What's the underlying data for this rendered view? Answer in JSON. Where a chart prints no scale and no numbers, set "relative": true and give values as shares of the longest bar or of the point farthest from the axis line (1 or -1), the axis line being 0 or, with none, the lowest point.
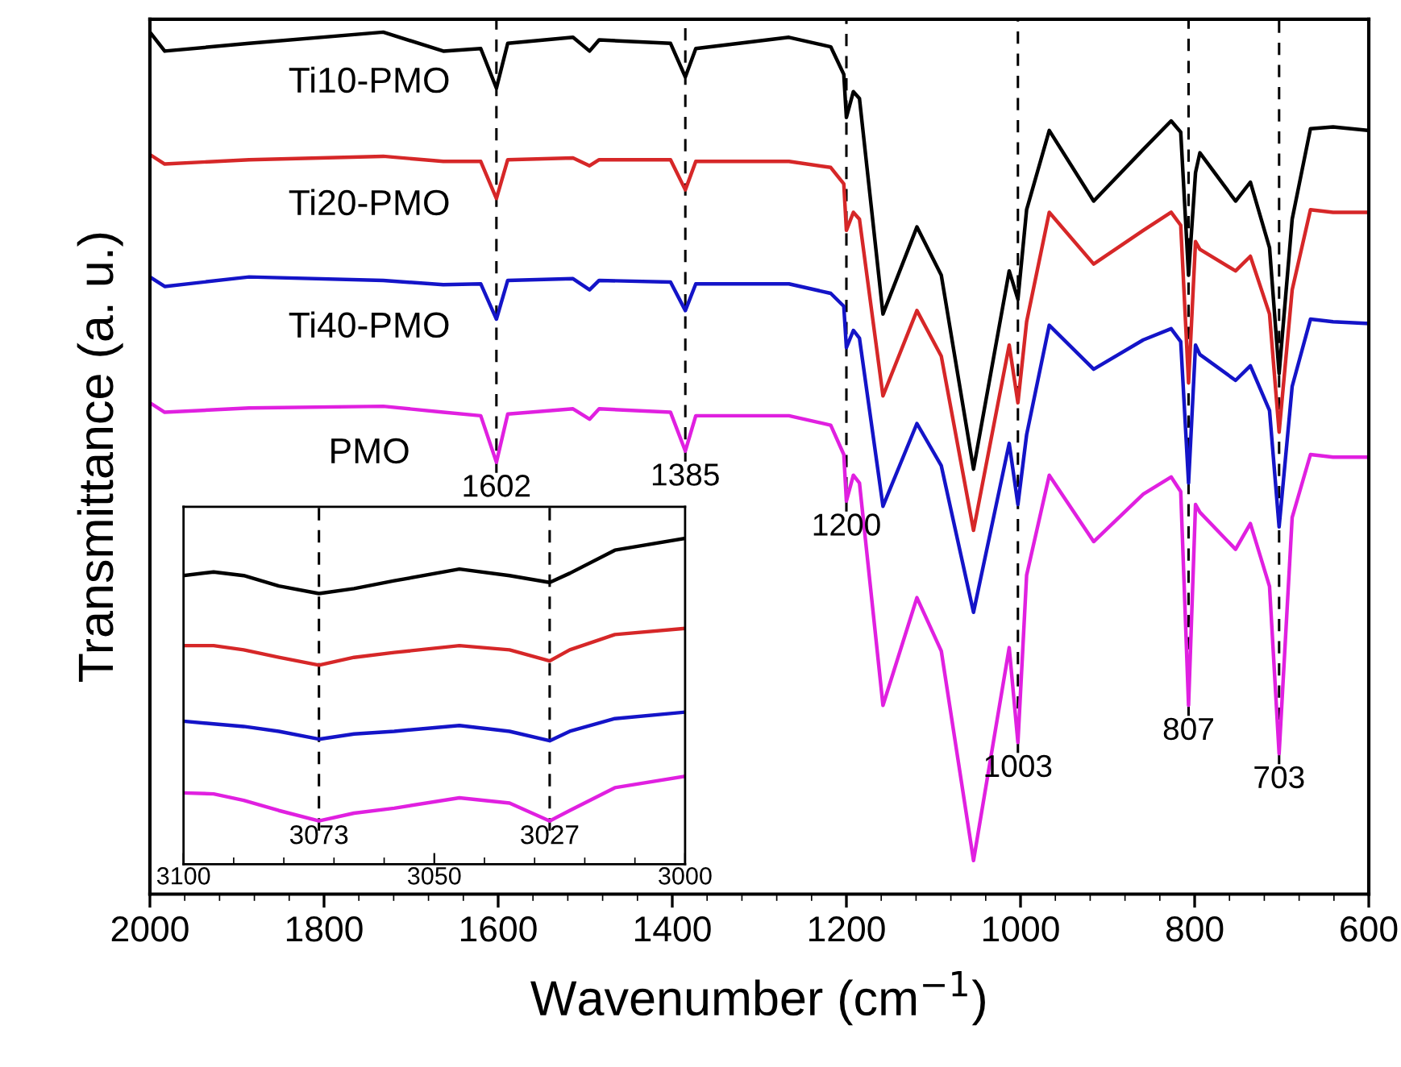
{
  "chart_data": [
    {
      "type": "line",
      "relative": true,
      "xlabel": "Wavenumber (cm$^{−1}$)",
      "ylabel": "Transmittance (a. u.)",
      "xlim": [
        2000,
        600
      ],
      "xticks": [
        2000,
        1800,
        1600,
        1400,
        1200,
        1000,
        800,
        600
      ],
      "tick_labels": "x",
      "grid": false,
      "legend": false,
      "marker": "none",
      "line_style": "solid",
      "x": [
        2000,
        1983,
        1886,
        1732,
        1663,
        1620,
        1602,
        1589,
        1514,
        1495,
        1484,
        1402,
        1385,
        1373,
        1266,
        1218,
        1203,
        1200,
        1192,
        1185,
        1158,
        1119,
        1091,
        1054,
        1013,
        1003,
        993,
        967,
        916,
        859,
        827,
        816,
        807,
        799,
        794,
        753,
        736,
        714,
        703,
        688,
        667,
        641,
        600
      ],
      "series": [
        {
          "name": "Ti10-PMO",
          "color": "#000000",
          "values": [
            1.0,
            0.978,
            0.987,
            1.0,
            0.978,
            0.981,
            0.935,
            0.987,
            0.994,
            0.978,
            0.991,
            0.987,
            0.948,
            0.981,
            0.994,
            0.983,
            0.951,
            0.901,
            0.931,
            0.923,
            0.673,
            0.774,
            0.718,
            0.493,
            0.723,
            0.69,
            0.794,
            0.886,
            0.804,
            0.864,
            0.897,
            0.884,
            0.718,
            0.837,
            0.86,
            0.804,
            0.826,
            0.75,
            0.604,
            0.783,
            0.888,
            0.89,
            0.886
          ]
        },
        {
          "name": "Ti20-PMO",
          "color": "#d62728",
          "values": [
            0.858,
            0.847,
            0.852,
            0.856,
            0.85,
            0.85,
            0.807,
            0.852,
            0.854,
            0.845,
            0.852,
            0.852,
            0.817,
            0.85,
            0.85,
            0.843,
            0.824,
            0.77,
            0.791,
            0.783,
            0.578,
            0.677,
            0.624,
            0.422,
            0.637,
            0.57,
            0.664,
            0.791,
            0.731,
            0.77,
            0.791,
            0.776,
            0.593,
            0.757,
            0.748,
            0.723,
            0.74,
            0.673,
            0.536,
            0.701,
            0.794,
            0.791,
            0.791
          ]
        },
        {
          "name": "Ti40-PMO",
          "color": "#1414c8",
          "values": [
            0.716,
            0.705,
            0.716,
            0.712,
            0.707,
            0.708,
            0.667,
            0.712,
            0.714,
            0.701,
            0.712,
            0.71,
            0.677,
            0.708,
            0.708,
            0.697,
            0.682,
            0.634,
            0.654,
            0.645,
            0.45,
            0.546,
            0.497,
            0.327,
            0.523,
            0.452,
            0.533,
            0.66,
            0.609,
            0.643,
            0.656,
            0.641,
            0.477,
            0.637,
            0.626,
            0.596,
            0.613,
            0.561,
            0.426,
            0.589,
            0.667,
            0.664,
            0.662
          ]
        },
        {
          "name": "PMO",
          "color": "#e020e0",
          "values": [
            0.57,
            0.559,
            0.564,
            0.566,
            0.559,
            0.555,
            0.501,
            0.557,
            0.563,
            0.551,
            0.563,
            0.559,
            0.514,
            0.555,
            0.555,
            0.544,
            0.51,
            0.456,
            0.486,
            0.477,
            0.219,
            0.344,
            0.282,
            0.039,
            0.286,
            0.176,
            0.37,
            0.486,
            0.409,
            0.464,
            0.484,
            0.467,
            0.219,
            0.452,
            0.443,
            0.4,
            0.43,
            0.357,
            0.163,
            0.437,
            0.51,
            0.507,
            0.507
          ]
        }
      ],
      "ref_lines": [
        {
          "axis": "x",
          "value": 1602,
          "label": "1602",
          "line_style": "dashed",
          "color": "#000000"
        },
        {
          "axis": "x",
          "value": 1385,
          "label": "1385",
          "line_style": "dashed",
          "color": "#000000"
        },
        {
          "axis": "x",
          "value": 1200,
          "label": "1200",
          "line_style": "dashed",
          "color": "#000000"
        },
        {
          "axis": "x",
          "value": 1003,
          "label": "1003",
          "line_style": "dashed",
          "color": "#000000"
        },
        {
          "axis": "x",
          "value": 807,
          "label": "807",
          "line_style": "dashed",
          "color": "#000000"
        },
        {
          "axis": "x",
          "value": 703,
          "label": "703",
          "line_style": "dashed",
          "color": "#000000"
        }
      ]
    },
    {
      "type": "line",
      "relative": true,
      "xlim": [
        3100,
        3000
      ],
      "xticks": [
        3100,
        3050,
        3000
      ],
      "tick_labels": "x",
      "grid": false,
      "legend": false,
      "marker": "none",
      "line_style": "solid",
      "x": [
        3100,
        3094,
        3088,
        3081,
        3073,
        3066,
        3058,
        3045,
        3035,
        3027,
        3023,
        3014,
        3000
      ],
      "series": [
        {
          "color": "#000000",
          "values": [
            0.886,
            0.897,
            0.886,
            0.854,
            0.831,
            0.846,
            0.87,
            0.906,
            0.886,
            0.865,
            0.893,
            0.964,
            1.0
          ]
        },
        {
          "color": "#d62728",
          "values": [
            0.671,
            0.671,
            0.658,
            0.635,
            0.611,
            0.635,
            0.65,
            0.671,
            0.658,
            0.624,
            0.658,
            0.705,
            0.724
          ]
        },
        {
          "color": "#1414c8",
          "values": [
            0.439,
            0.431,
            0.423,
            0.408,
            0.384,
            0.4,
            0.408,
            0.426,
            0.408,
            0.379,
            0.408,
            0.447,
            0.467
          ]
        },
        {
          "color": "#e020e0",
          "values": [
            0.219,
            0.216,
            0.196,
            0.165,
            0.133,
            0.157,
            0.172,
            0.204,
            0.188,
            0.133,
            0.165,
            0.235,
            0.27
          ]
        }
      ],
      "ref_lines": [
        {
          "axis": "x",
          "value": 3073,
          "label": "3073",
          "line_style": "dashed",
          "color": "#000000"
        },
        {
          "axis": "x",
          "value": 3027,
          "label": "3027",
          "line_style": "dashed",
          "color": "#000000"
        }
      ]
    }
  ]
}
